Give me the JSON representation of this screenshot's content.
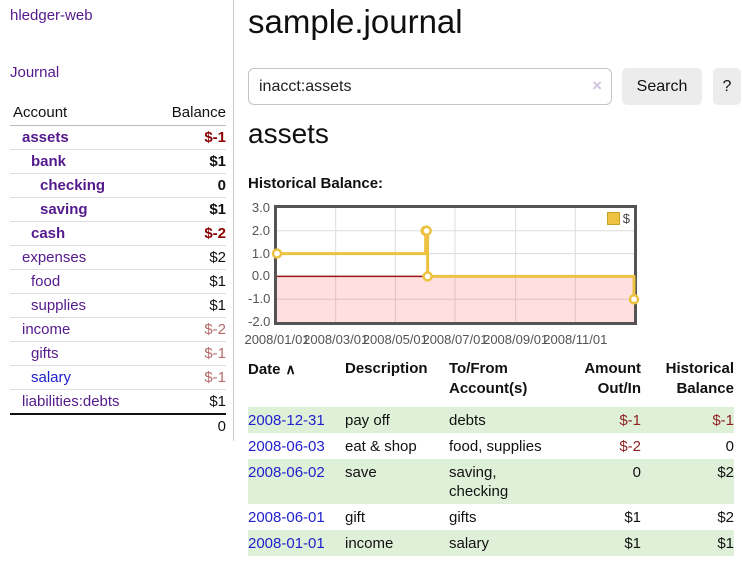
{
  "app": {
    "title": "hledger-web"
  },
  "sidebar": {
    "journal_link": "Journal",
    "accounts": {
      "header_account": "Account",
      "header_balance": "Balance",
      "rows": [
        {
          "name": "assets",
          "depth": 1,
          "bold": true,
          "link_color": "purple",
          "balance": "$-1",
          "balance_tone": "neg-strong"
        },
        {
          "name": "bank",
          "depth": 2,
          "bold": true,
          "link_color": "purple",
          "balance": "$1",
          "balance_tone": "normal"
        },
        {
          "name": "checking",
          "depth": 3,
          "bold": true,
          "link_color": "purple",
          "balance": "0",
          "balance_tone": "normal"
        },
        {
          "name": "saving",
          "depth": 3,
          "bold": true,
          "link_color": "purple",
          "balance": "$1",
          "balance_tone": "normal"
        },
        {
          "name": "cash",
          "depth": 2,
          "bold": true,
          "link_color": "purple",
          "balance": "$-2",
          "balance_tone": "neg-strong"
        },
        {
          "name": "expenses",
          "depth": 1,
          "bold": false,
          "link_color": "purple",
          "balance": "$2",
          "balance_tone": "normal"
        },
        {
          "name": "food",
          "depth": 2,
          "bold": false,
          "link_color": "purple",
          "balance": "$1",
          "balance_tone": "normal"
        },
        {
          "name": "supplies",
          "depth": 2,
          "bold": false,
          "link_color": "purple",
          "balance": "$1",
          "balance_tone": "normal"
        },
        {
          "name": "income",
          "depth": 1,
          "bold": false,
          "link_color": "purple",
          "balance": "$-2",
          "balance_tone": "neg-soft"
        },
        {
          "name": "gifts",
          "depth": 2,
          "bold": false,
          "link_color": "purple",
          "balance": "$-1",
          "balance_tone": "neg-soft"
        },
        {
          "name": "salary",
          "depth": 2,
          "bold": false,
          "link_color": "blue",
          "balance": "$-1",
          "balance_tone": "neg-soft"
        },
        {
          "name": "liabilities:debts",
          "depth": 1,
          "bold": false,
          "link_color": "purple",
          "balance": "$1",
          "balance_tone": "normal"
        }
      ],
      "total": "0"
    }
  },
  "header": {
    "title": "sample.journal"
  },
  "search": {
    "value": "inacct:assets",
    "clear_icon": "×",
    "button_label": "Search",
    "help_label": "?"
  },
  "main": {
    "account_heading": "assets"
  },
  "chart_data": {
    "type": "line",
    "title": "Historical Balance:",
    "style": "step-after",
    "ylim": [
      -2,
      3
    ],
    "x_range_days": 365,
    "y_ticks": [
      3,
      2,
      1,
      0,
      -1,
      -2
    ],
    "x_ticks": [
      {
        "label": "2008/01/01",
        "day": 0
      },
      {
        "label": "2008/03/01",
        "day": 60
      },
      {
        "label": "2008/05/01",
        "day": 121
      },
      {
        "label": "2008/07/01",
        "day": 182
      },
      {
        "label": "2008/09/01",
        "day": 244
      },
      {
        "label": "2008/11/01",
        "day": 305
      }
    ],
    "series": [
      {
        "name": "$",
        "color": "#EDC240",
        "points": [
          {
            "date": "2008-01-01",
            "day": 0,
            "value": 1
          },
          {
            "date": "2008-06-01",
            "day": 152,
            "value": 2
          },
          {
            "date": "2008-06-02",
            "day": 153,
            "value": 2
          },
          {
            "date": "2008-06-03",
            "day": 154,
            "value": 0
          },
          {
            "date": "2008-12-31",
            "day": 365,
            "value": -1
          }
        ]
      }
    ],
    "legend": {
      "label": "$",
      "position": "top-right"
    },
    "grid": true,
    "grid_color": "#dcdcdc",
    "border_color": "#545454",
    "zero_line_color": "#9b1515",
    "negative_region_color": "rgba(255,40,40,0.15)"
  },
  "register": {
    "headers": {
      "date": "Date",
      "sort_icon": "∧",
      "description": "Description",
      "account": "To/From Account(s)",
      "amount": "Amount Out/In",
      "balance": "Historical Balance"
    },
    "rows": [
      {
        "date": "2008-12-31",
        "description": "pay off",
        "accounts": "debts",
        "amount": "$-1",
        "amount_negative": true,
        "balance": "$-1",
        "balance_negative": true,
        "highlighted": true
      },
      {
        "date": "2008-06-03",
        "description": "eat & shop",
        "accounts": "food, supplies",
        "amount": "$-2",
        "amount_negative": true,
        "balance": "0",
        "balance_negative": false,
        "highlighted": false
      },
      {
        "date": "2008-06-02",
        "description": "save",
        "accounts": "saving, checking",
        "amount": "0",
        "amount_negative": false,
        "balance": "$2",
        "balance_negative": false,
        "highlighted": true
      },
      {
        "date": "2008-06-01",
        "description": "gift",
        "accounts": "gifts",
        "amount": "$1",
        "amount_negative": false,
        "balance": "$2",
        "balance_negative": false,
        "highlighted": false
      },
      {
        "date": "2008-01-01",
        "description": "income",
        "accounts": "salary",
        "amount": "$1",
        "amount_negative": false,
        "balance": "$1",
        "balance_negative": false,
        "highlighted": true
      }
    ]
  },
  "colors": {
    "link_purple": "#551a8b",
    "link_blue": "#2121cc",
    "negative_strong": "#8b0000",
    "negative_soft": "#b46a6a",
    "register_negative": "#8e2222",
    "row_highlight": "#dff0d8",
    "series_gold": "#EDC240"
  }
}
